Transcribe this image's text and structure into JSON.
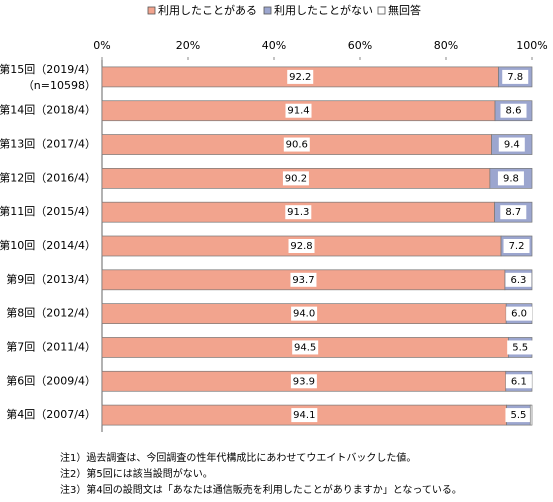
{
  "chart_data": {
    "type": "stacked-barh",
    "categories": [
      "第15回（2019/4）",
      "第14回（2018/4）",
      "第13回（2017/4）",
      "第12回（2016/4）",
      "第11回（2015/4）",
      "第10回（2014/4）",
      "第9回（2013/4）",
      "第8回（2012/4）",
      "第7回（2011/4）",
      "第6回（2009/4）",
      "第4回（2007/4）"
    ],
    "sample_size_label": "（n=10598）",
    "series": [
      {
        "name": "利用したことがある",
        "color": "#f2a48e",
        "values": [
          92.2,
          91.4,
          90.6,
          90.2,
          91.3,
          92.8,
          93.7,
          94.0,
          94.5,
          93.9,
          94.1
        ],
        "value_labels": [
          "92.2",
          "91.4",
          "90.6",
          "90.2",
          "91.3",
          "92.8",
          "93.7",
          "94.0",
          "94.5",
          "93.9",
          "94.1"
        ]
      },
      {
        "name": "利用したことがない",
        "color": "#9ca6cf",
        "values": [
          7.8,
          8.6,
          9.4,
          9.8,
          8.7,
          7.2,
          6.3,
          6.0,
          5.5,
          6.1,
          5.5
        ],
        "value_labels": [
          "7.8",
          "8.6",
          "9.4",
          "9.8",
          "8.7",
          "7.2",
          "6.3",
          "6.0",
          "5.5",
          "6.1",
          "5.5"
        ]
      },
      {
        "name": "無回答",
        "color": "#ffffff",
        "values": [
          0,
          0,
          0,
          0,
          0,
          0,
          0,
          0,
          0,
          0,
          0.4
        ]
      }
    ],
    "xlim": [
      0,
      100
    ],
    "xticks": [
      {
        "value": 0,
        "label": "0%"
      },
      {
        "value": 20,
        "label": "20%"
      },
      {
        "value": 40,
        "label": "40%"
      },
      {
        "value": 60,
        "label": "60%"
      },
      {
        "value": 80,
        "label": "80%"
      },
      {
        "value": 100,
        "label": "100%"
      }
    ],
    "grid": false,
    "legend": "top",
    "notes": [
      "注1）過去調査は、今回調査の性年代構成比にあわせてウエイトバックした値。",
      "注2）第5回には該当設問がない。",
      "注3）第4回の設問文は「あなたは通信販売を利用したことがありますか」となっている。"
    ]
  }
}
